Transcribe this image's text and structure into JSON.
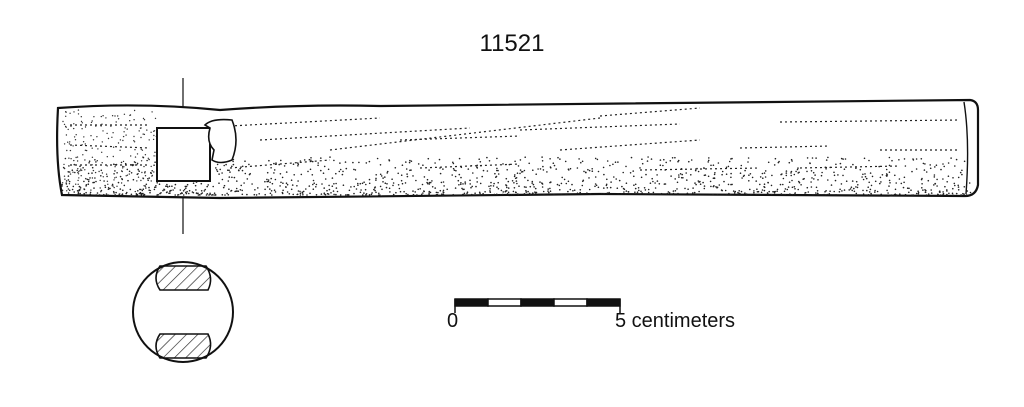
{
  "figure": {
    "catalog_number": "11521"
  },
  "scale_bar": {
    "start_label": "0",
    "end_label": "5 centimeters",
    "segments": 5
  }
}
